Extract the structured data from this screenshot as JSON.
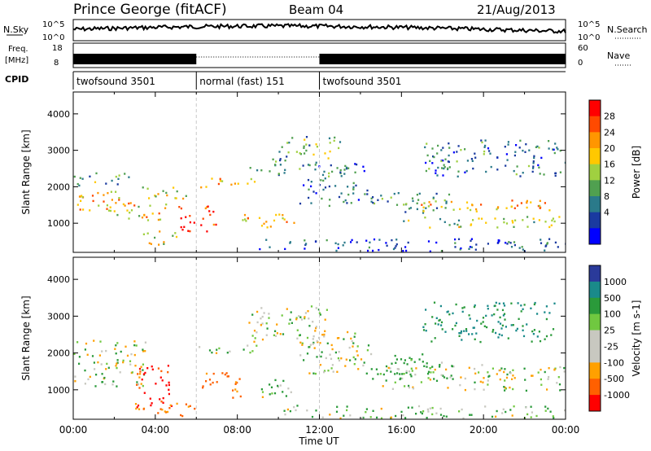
{
  "header": {
    "station": "Prince George (fitACF)",
    "beam": "Beam 04",
    "date": "21/Aug/2013"
  },
  "strip_labels": {
    "nsky": "N.Sky",
    "nsearch": "N.Search",
    "freq_line1": "Freq.",
    "freq_line2": "[MHz]",
    "nave": "Nave",
    "cpid": "CPID"
  },
  "strip_ticks": {
    "noise_left": [
      "10^5",
      "10^0"
    ],
    "noise_right": [
      "10^5",
      "10^0"
    ],
    "freq_left": [
      "18",
      "8"
    ],
    "nave_right": [
      "60",
      "0"
    ]
  },
  "cpid_segments": [
    {
      "label": "twofsound 3501",
      "start_h": 0,
      "end_h": 6
    },
    {
      "label": "normal (fast) 151",
      "start_h": 6,
      "end_h": 12
    },
    {
      "label": "twofsound 3501",
      "start_h": 12,
      "end_h": 24
    }
  ],
  "chart_data": [
    {
      "type": "heatmap",
      "panel": "power",
      "ylabel": "Slant Range [km]",
      "colorbar_label": "Power [dB]",
      "colorbar_ticks": [
        "28",
        "24",
        "20",
        "16",
        "12",
        "8",
        "4"
      ],
      "colorbar_colors": [
        "#ff0000",
        "#ff4a00",
        "#ff9600",
        "#ffc800",
        "#a0d040",
        "#50a050",
        "#2a7a8a",
        "#1a3aa0",
        "#0000ff"
      ],
      "x_ticks": [
        "00:00",
        "04:00",
        "08:00",
        "12:00",
        "16:00",
        "20:00",
        "00:00"
      ],
      "xlim": [
        0,
        24
      ],
      "ylim": [
        200,
        4600
      ],
      "y_ticks": [
        "4000",
        "3000",
        "2000",
        "1000"
      ],
      "y_tick_values": [
        4000,
        3000,
        2000,
        1000
      ],
      "echo_regions": [
        {
          "t0": 0.0,
          "t1": 3.0,
          "r0": 1350,
          "r1": 1900,
          "db": 20
        },
        {
          "t0": 0.0,
          "t1": 2.8,
          "r0": 2050,
          "r1": 2400,
          "db": 12
        },
        {
          "t0": 1.5,
          "t1": 4.5,
          "r0": 1100,
          "r1": 1600,
          "db": 18
        },
        {
          "t0": 3.0,
          "t1": 5.5,
          "r0": 1700,
          "r1": 2050,
          "db": 16
        },
        {
          "t0": 3.2,
          "t1": 5.0,
          "r0": 400,
          "r1": 800,
          "db": 18
        },
        {
          "t0": 5.0,
          "t1": 7.0,
          "r0": 800,
          "r1": 1500,
          "db": 26
        },
        {
          "t0": 6.0,
          "t1": 9.0,
          "r0": 2000,
          "r1": 2250,
          "db": 22
        },
        {
          "t0": 8.5,
          "t1": 10.5,
          "r0": 2300,
          "r1": 2800,
          "db": 10
        },
        {
          "t0": 10.0,
          "t1": 13.0,
          "r0": 2800,
          "r1": 3400,
          "db": 12
        },
        {
          "t0": 11.0,
          "t1": 14.5,
          "r0": 1500,
          "r1": 2700,
          "db": 8
        },
        {
          "t0": 8.0,
          "t1": 11.0,
          "r0": 900,
          "r1": 1300,
          "db": 18
        },
        {
          "t0": 14.5,
          "t1": 18.5,
          "r0": 1300,
          "r1": 1900,
          "db": 10
        },
        {
          "t0": 16.0,
          "t1": 24.0,
          "r0": 1350,
          "r1": 1650,
          "db": 20
        },
        {
          "t0": 16.0,
          "t1": 24.0,
          "r0": 900,
          "r1": 1200,
          "db": 14
        },
        {
          "t0": 17.0,
          "t1": 24.0,
          "r0": 2300,
          "r1": 3300,
          "db": 8
        },
        {
          "t0": 9.0,
          "t1": 24.0,
          "r0": 250,
          "r1": 600,
          "db": 6
        }
      ]
    },
    {
      "type": "heatmap",
      "panel": "velocity",
      "ylabel": "Slant Range [km]",
      "colorbar_label": "Velocity [m s-1]",
      "colorbar_ticks": [
        "1000",
        "500",
        "100",
        "25",
        "-25",
        "-100",
        "-500",
        "-1000"
      ],
      "colorbar_colors": [
        "#2a3a9a",
        "#1a8a8a",
        "#2a9a3a",
        "#70c840",
        "#c8c8c0",
        "#c8c8c0",
        "#ffa000",
        "#ff6000",
        "#ff0000"
      ],
      "x_ticks": [
        "00:00",
        "04:00",
        "08:00",
        "12:00",
        "16:00",
        "20:00",
        "00:00"
      ],
      "xlabel": "Time UT",
      "xlim": [
        0,
        24
      ],
      "ylim": [
        200,
        4600
      ],
      "y_ticks": [
        "4000",
        "3000",
        "2000",
        "1000"
      ],
      "y_tick_values": [
        4000,
        3000,
        2000,
        1000
      ],
      "echo_regions": [
        {
          "t0": 0.0,
          "t1": 3.5,
          "r0": 1100,
          "r1": 2400,
          "v": 0
        },
        {
          "t0": 3.0,
          "t1": 4.8,
          "r0": 500,
          "r1": 1700,
          "v": -800
        },
        {
          "t0": 3.0,
          "t1": 6.0,
          "r0": 300,
          "r1": 650,
          "v": -300
        },
        {
          "t0": 6.2,
          "t1": 8.2,
          "r0": 800,
          "r1": 1500,
          "v": -400
        },
        {
          "t0": 6.0,
          "t1": 9.0,
          "r0": 2000,
          "r1": 2250,
          "v": 0
        },
        {
          "t0": 8.5,
          "t1": 12.5,
          "r0": 2300,
          "r1": 3300,
          "v": 0
        },
        {
          "t0": 11.0,
          "t1": 14.5,
          "r0": 1400,
          "r1": 2600,
          "v": 0
        },
        {
          "t0": 9.0,
          "t1": 11.0,
          "r0": 800,
          "r1": 1300,
          "v": 60
        },
        {
          "t0": 14.5,
          "t1": 18.5,
          "r0": 1300,
          "r1": 2000,
          "v": 150
        },
        {
          "t0": 15.0,
          "t1": 24.0,
          "r0": 1000,
          "r1": 1700,
          "v": 0
        },
        {
          "t0": 17.0,
          "t1": 23.5,
          "r0": 2300,
          "r1": 3400,
          "v": 300
        },
        {
          "t0": 10.0,
          "t1": 24.0,
          "r0": 250,
          "r1": 600,
          "v": 60
        }
      ]
    }
  ]
}
